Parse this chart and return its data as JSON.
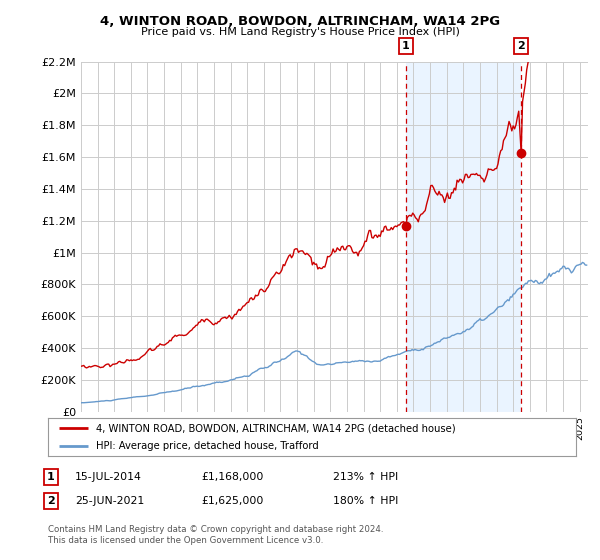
{
  "title": "4, WINTON ROAD, BOWDON, ALTRINCHAM, WA14 2PG",
  "subtitle": "Price paid vs. HM Land Registry's House Price Index (HPI)",
  "ylim": [
    0,
    2200000
  ],
  "yticks": [
    0,
    200000,
    400000,
    600000,
    800000,
    1000000,
    1200000,
    1400000,
    1600000,
    1800000,
    2000000,
    2200000
  ],
  "ytick_labels": [
    "£0",
    "£200K",
    "£400K",
    "£600K",
    "£800K",
    "£1M",
    "£1.2M",
    "£1.4M",
    "£1.6M",
    "£1.8M",
    "£2M",
    "£2.2M"
  ],
  "xlim_start": 1995.0,
  "xlim_end": 2025.5,
  "background_color": "#ffffff",
  "grid_color": "#cccccc",
  "shade_color": "#ddeeff",
  "hpi_color": "#6699cc",
  "price_color": "#cc0000",
  "marker1_year": 2014.54,
  "marker1_price": 1168000,
  "marker2_year": 2021.48,
  "marker2_price": 1625000,
  "legend_label_red": "4, WINTON ROAD, BOWDON, ALTRINCHAM, WA14 2PG (detached house)",
  "legend_label_blue": "HPI: Average price, detached house, Trafford",
  "table_row1": [
    "1",
    "15-JUL-2014",
    "£1,168,000",
    "213% ↑ HPI"
  ],
  "table_row2": [
    "2",
    "25-JUN-2021",
    "£1,625,000",
    "180% ↑ HPI"
  ],
  "footer": "Contains HM Land Registry data © Crown copyright and database right 2024.\nThis data is licensed under the Open Government Licence v3.0."
}
